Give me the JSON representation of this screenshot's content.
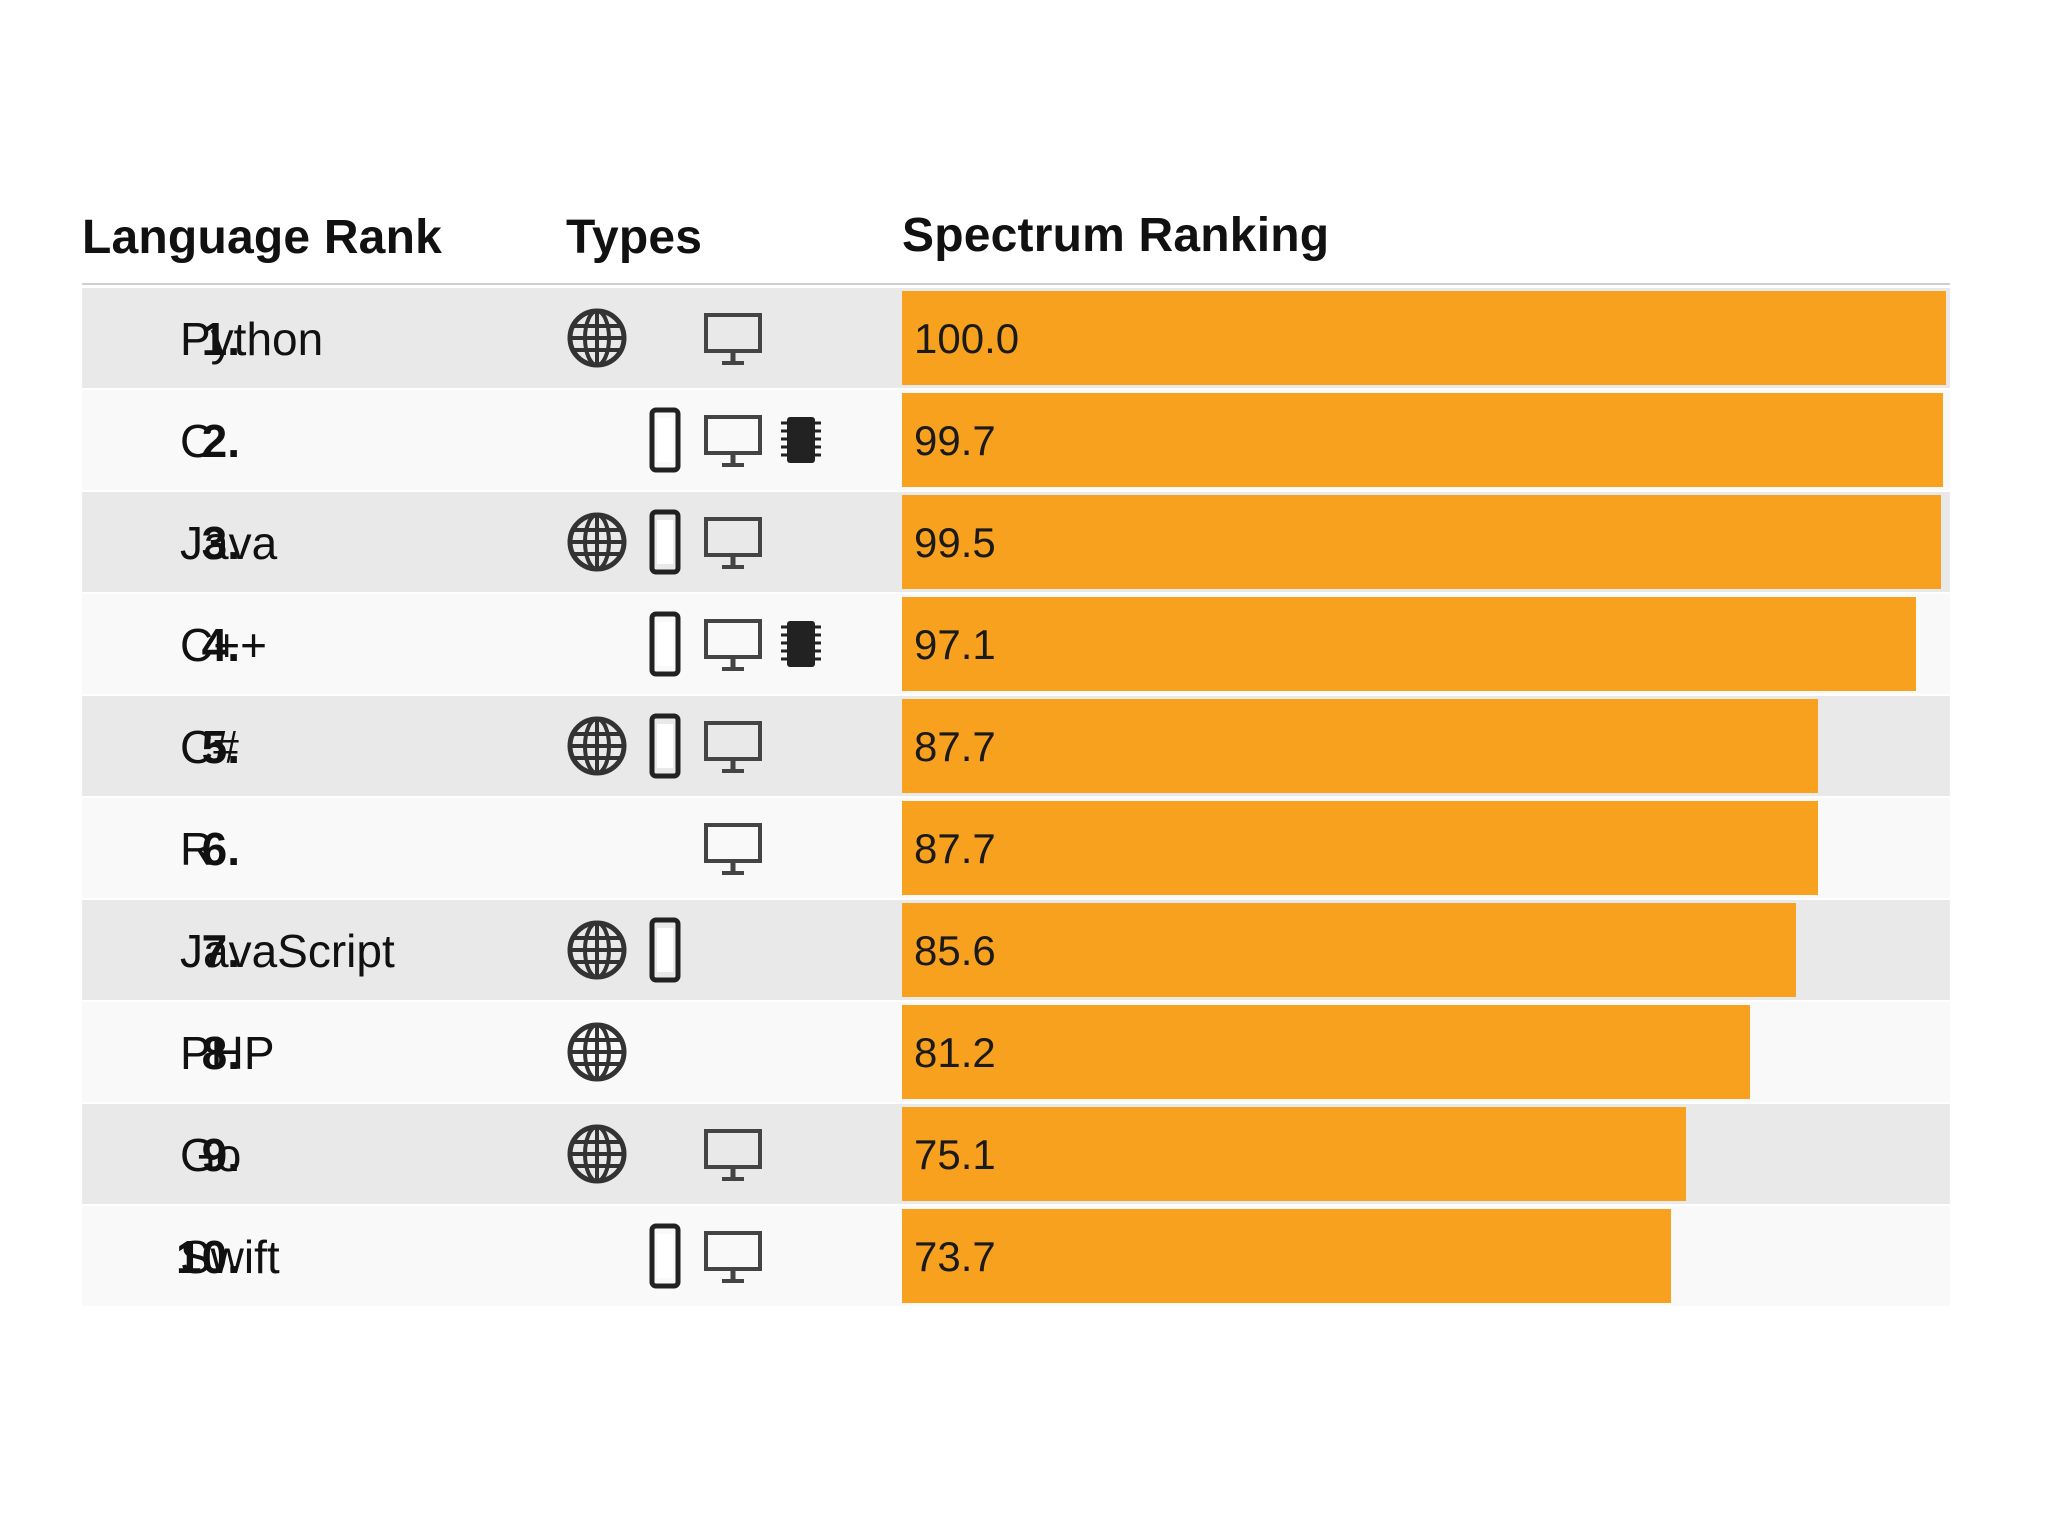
{
  "chart_data": {
    "type": "bar",
    "orientation": "horizontal",
    "headers": {
      "rank": "Language Rank",
      "types": "Types",
      "ranking": "Spectrum Ranking"
    },
    "xlim": [
      0,
      100
    ],
    "bar_color": "#f8a11f",
    "rows": [
      {
        "rank": "1.",
        "language": "Python",
        "value": 100.0,
        "value_label": "100.0",
        "types": [
          "web-icon",
          "desktop-icon"
        ]
      },
      {
        "rank": "2.",
        "language": "C",
        "value": 99.7,
        "value_label": "99.7",
        "types": [
          "mobile-icon",
          "desktop-icon",
          "embedded-icon"
        ]
      },
      {
        "rank": "3.",
        "language": "Java",
        "value": 99.5,
        "value_label": "99.5",
        "types": [
          "web-icon",
          "mobile-icon",
          "desktop-icon"
        ]
      },
      {
        "rank": "4.",
        "language": "C++",
        "value": 97.1,
        "value_label": "97.1",
        "types": [
          "mobile-icon",
          "desktop-icon",
          "embedded-icon"
        ]
      },
      {
        "rank": "5.",
        "language": "C#",
        "value": 87.7,
        "value_label": "87.7",
        "types": [
          "web-icon",
          "mobile-icon",
          "desktop-icon"
        ]
      },
      {
        "rank": "6.",
        "language": "R",
        "value": 87.7,
        "value_label": "87.7",
        "types": [
          "desktop-icon"
        ]
      },
      {
        "rank": "7.",
        "language": "JavaScript",
        "value": 85.6,
        "value_label": "85.6",
        "types": [
          "web-icon",
          "mobile-icon"
        ]
      },
      {
        "rank": "8.",
        "language": "PHP",
        "value": 81.2,
        "value_label": "81.2",
        "types": [
          "web-icon"
        ]
      },
      {
        "rank": "9.",
        "language": "Go",
        "value": 75.1,
        "value_label": "75.1",
        "types": [
          "web-icon",
          "desktop-icon"
        ]
      },
      {
        "rank": "10.",
        "language": "Swift",
        "value": 73.7,
        "value_label": "73.7",
        "types": [
          "mobile-icon",
          "desktop-icon"
        ]
      }
    ]
  }
}
